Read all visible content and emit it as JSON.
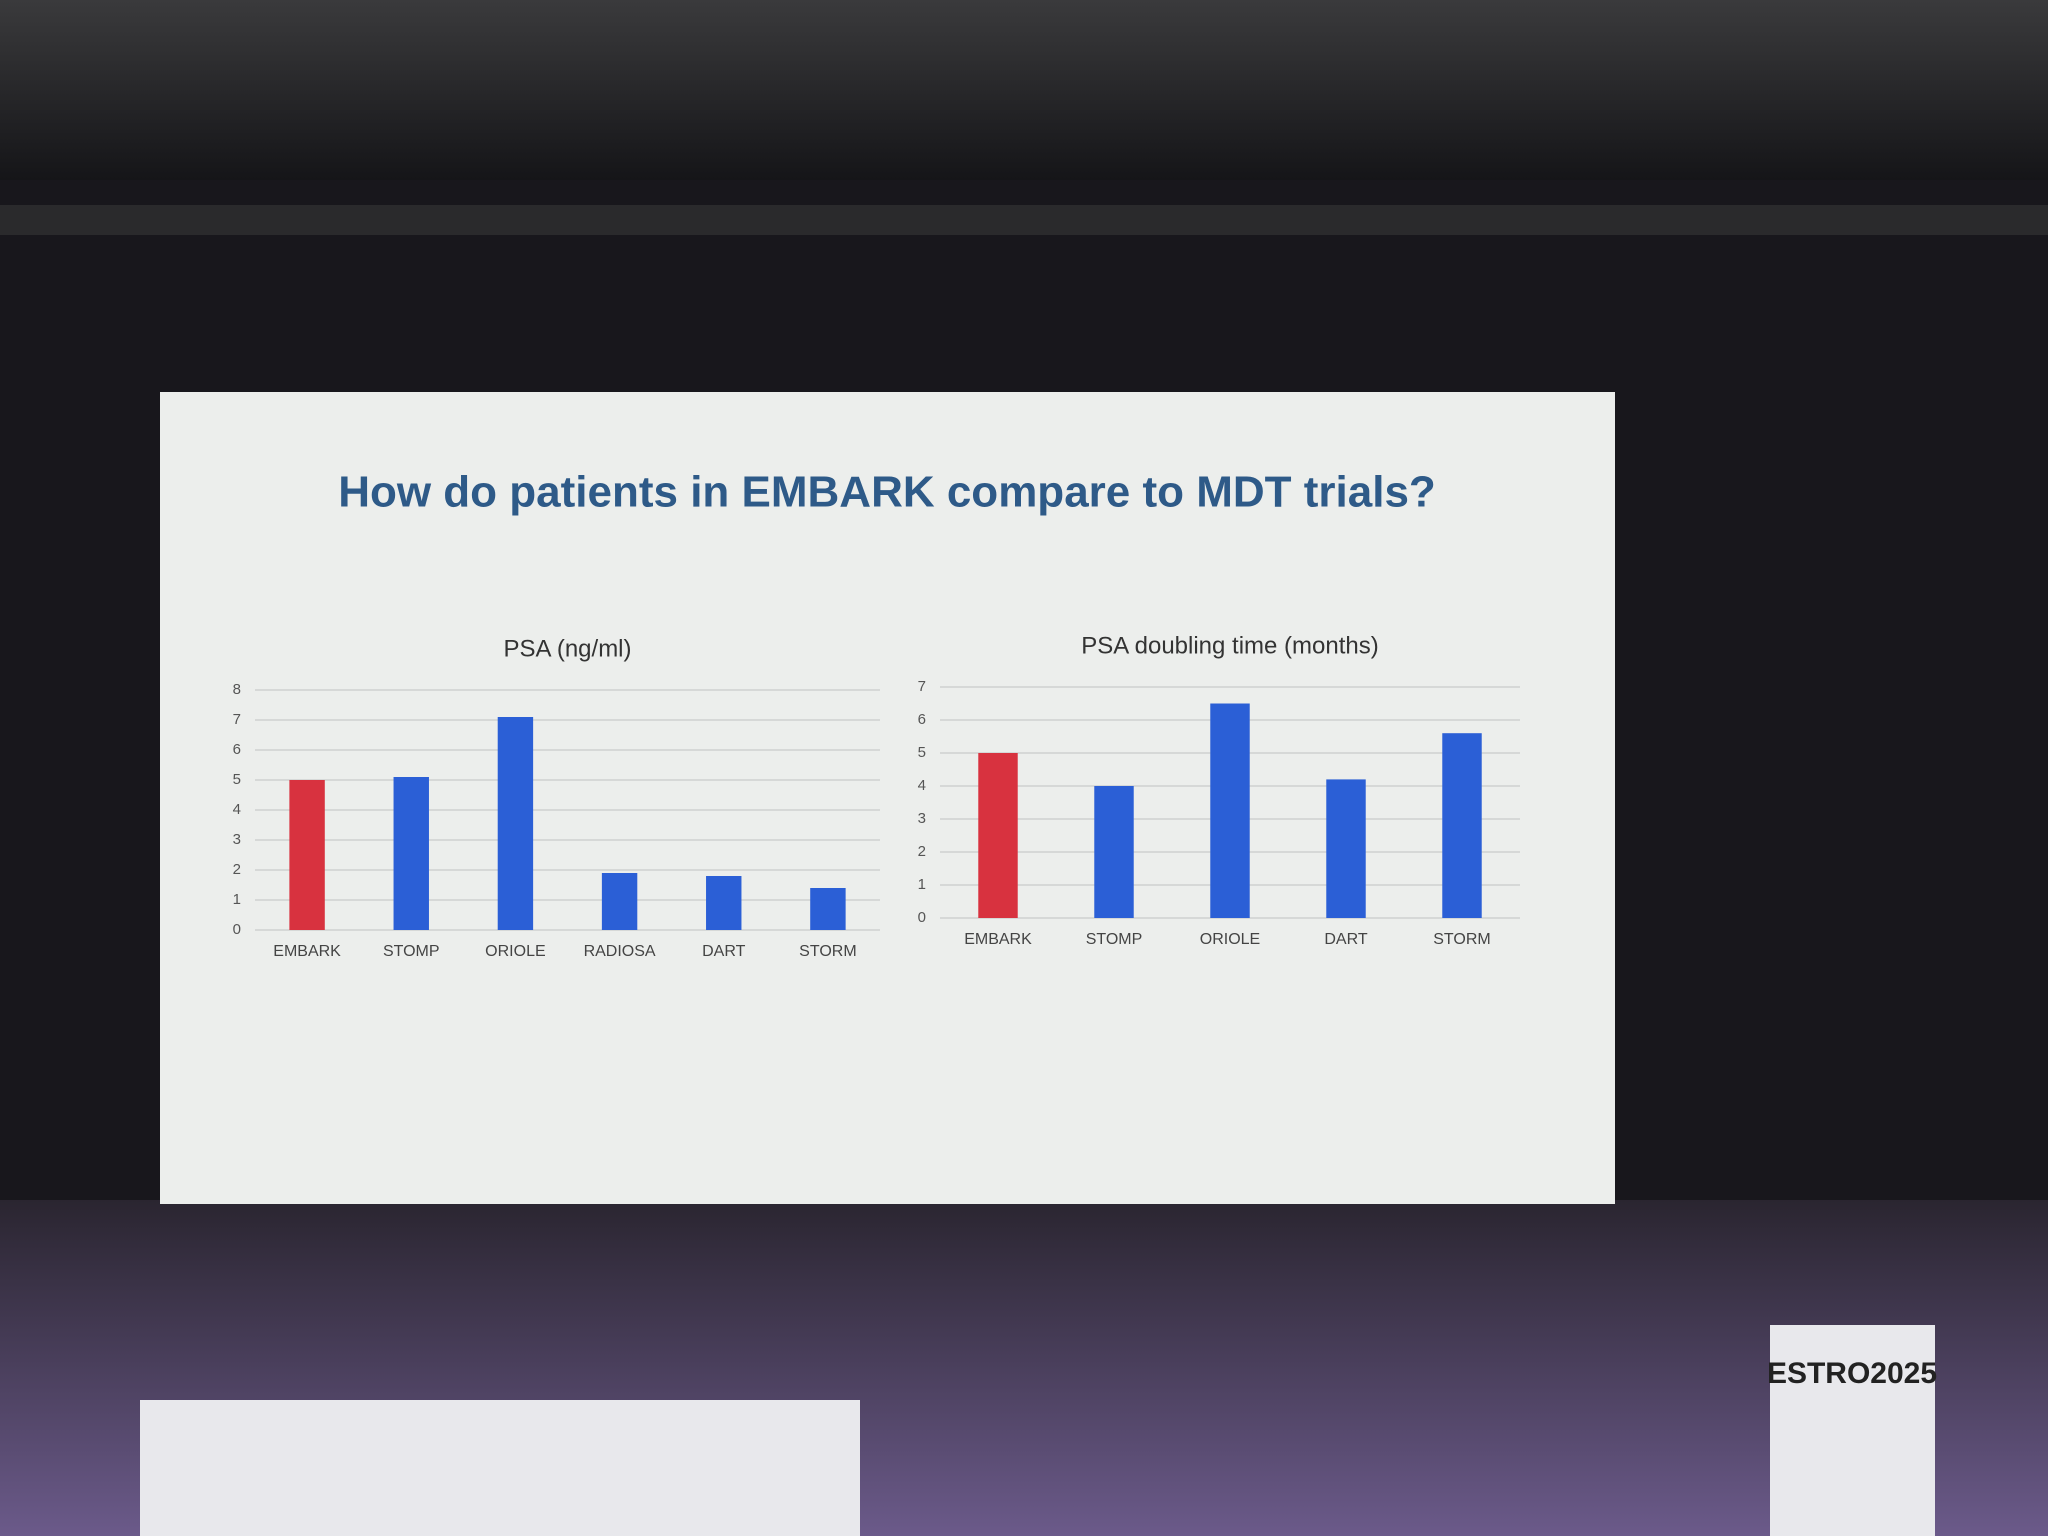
{
  "slide": {
    "title": "How do patients in EMBARK compare to MDT trials?"
  },
  "scene": {
    "podium_text": "ESTRO2025"
  },
  "chart_data": [
    {
      "type": "bar",
      "title": "PSA (ng/ml)",
      "categories": [
        "EMBARK",
        "STOMP",
        "ORIOLE",
        "RADIOSA",
        "DART",
        "STORM"
      ],
      "values": [
        5,
        5.1,
        7.1,
        1.9,
        1.8,
        1.4
      ],
      "colors": [
        "#d8323f",
        "#2b5fd6",
        "#2b5fd6",
        "#2b5fd6",
        "#2b5fd6",
        "#2b5fd6"
      ],
      "ylim": [
        0,
        8
      ],
      "yticks": [
        0,
        1,
        2,
        3,
        4,
        5,
        6,
        7,
        8
      ],
      "grid": true
    },
    {
      "type": "bar",
      "title": "PSA doubling time (months)",
      "categories": [
        "EMBARK",
        "STOMP",
        "ORIOLE",
        "DART",
        "STORM"
      ],
      "values": [
        5,
        4,
        6.5,
        4.2,
        5.6
      ],
      "colors": [
        "#d8323f",
        "#2b5fd6",
        "#2b5fd6",
        "#2b5fd6",
        "#2b5fd6"
      ],
      "ylim": [
        0,
        7
      ],
      "yticks": [
        0,
        1,
        2,
        3,
        4,
        5,
        6,
        7
      ],
      "grid": true
    }
  ]
}
